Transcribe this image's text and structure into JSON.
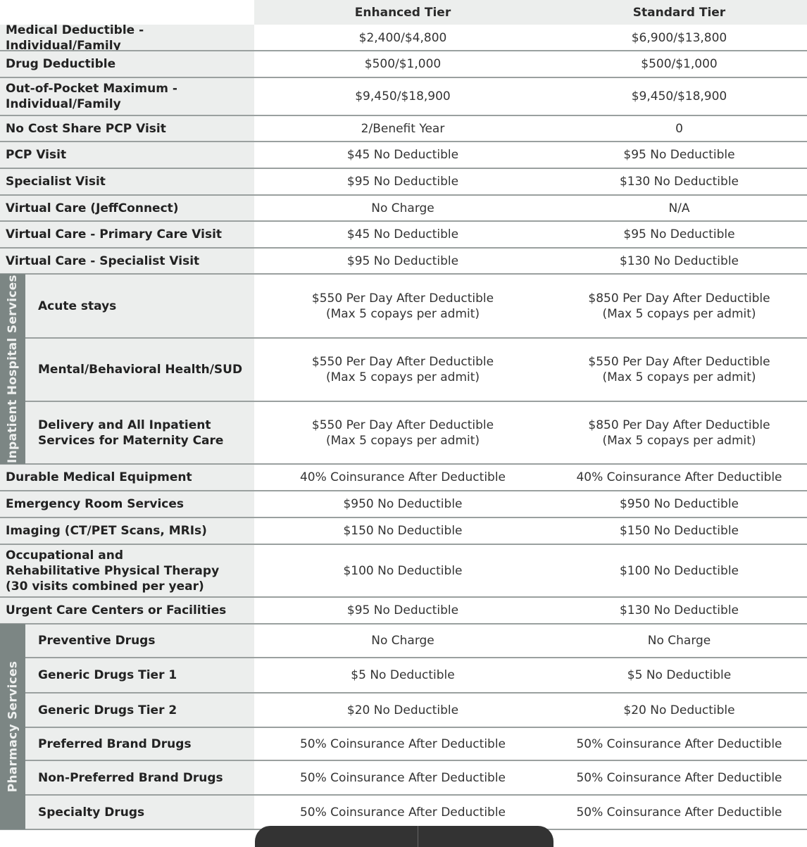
{
  "header": {
    "col1": "Enhanced Tier",
    "col2": "Standard Tier"
  },
  "groups": [
    {
      "label": "Inpatient Hospital Services",
      "start": 9,
      "end": 11
    },
    {
      "label": "Pharmacy Services",
      "start": 17,
      "end": 22
    }
  ],
  "rows": [
    {
      "label": "Medical Deductible - Individual/Family",
      "enhanced": "$2,400/$4,800",
      "standard": "$6,900/$13,800"
    },
    {
      "label": "Drug Deductible",
      "enhanced": "$500/$1,000",
      "standard": "$500/$1,000"
    },
    {
      "label": "Out-of-Pocket Maximum - Individual/Family",
      "enhanced": "$9,450/$18,900",
      "standard": "$9,450/$18,900"
    },
    {
      "label": "No Cost Share PCP Visit",
      "enhanced": "2/Benefit Year",
      "standard": "0"
    },
    {
      "label": "PCP Visit",
      "enhanced": "$45 No Deductible",
      "standard": "$95 No Deductible"
    },
    {
      "label": "Specialist Visit",
      "enhanced": "$95 No Deductible",
      "standard": "$130 No Deductible"
    },
    {
      "label": "Virtual Care (JeffConnect)",
      "enhanced": "No Charge",
      "standard": "N/A"
    },
    {
      "label": "Virtual Care - Primary Care Visit",
      "enhanced": "$45 No Deductible",
      "standard": "$95 No Deductible"
    },
    {
      "label": "Virtual Care - Specialist Visit",
      "enhanced": "$95 No Deductible",
      "standard": "$130 No Deductible"
    },
    {
      "label": "Acute stays",
      "enhanced": "$550 Per Day After Deductible\n(Max 5 copays per admit)",
      "standard": "$850 Per Day After Deductible\n(Max 5 copays per admit)"
    },
    {
      "label": "Mental/Behavioral Health/SUD",
      "enhanced": "$550 Per Day After Deductible\n(Max 5 copays per admit)",
      "standard": "$550 Per Day After Deductible\n(Max 5 copays per admit)"
    },
    {
      "label": "Delivery and All Inpatient\nServices for Maternity Care",
      "enhanced": "$550 Per Day After Deductible\n(Max 5 copays per admit)",
      "standard": "$850 Per Day After Deductible\n(Max 5 copays per admit)"
    },
    {
      "label": "Durable Medical Equipment",
      "enhanced": "40% Coinsurance After Deductible",
      "standard": "40% Coinsurance After Deductible"
    },
    {
      "label": "Emergency Room Services",
      "enhanced": "$950 No Deductible",
      "standard": "$950 No Deductible"
    },
    {
      "label": "Imaging (CT/PET Scans, MRIs)",
      "enhanced": "$150 No Deductible",
      "standard": "$150 No Deductible"
    },
    {
      "label": "Occupational and\nRehabilitative Physical Therapy\n(30 visits combined per year)",
      "enhanced": "$100 No Deductible",
      "standard": "$100 No Deductible"
    },
    {
      "label": "Urgent Care Centers or Facilities",
      "enhanced": "$95 No Deductible",
      "standard": "$130 No Deductible"
    },
    {
      "label": "Preventive Drugs",
      "enhanced": "No Charge",
      "standard": "No Charge"
    },
    {
      "label": "Generic Drugs Tier 1",
      "enhanced": "$5 No Deductible",
      "standard": "$5 No Deductible"
    },
    {
      "label": "Generic Drugs Tier 2",
      "enhanced": "$20 No Deductible",
      "standard": "$20 No Deductible"
    },
    {
      "label": "Preferred Brand Drugs",
      "enhanced": "50% Coinsurance After Deductible",
      "standard": "50% Coinsurance After Deductible"
    },
    {
      "label": "Non-Preferred Brand Drugs",
      "enhanced": "50% Coinsurance After Deductible",
      "standard": "50% Coinsurance After Deductible"
    },
    {
      "label": "Specialty Drugs",
      "enhanced": "50% Coinsurance After Deductible",
      "standard": "50% Coinsurance After Deductible"
    }
  ]
}
